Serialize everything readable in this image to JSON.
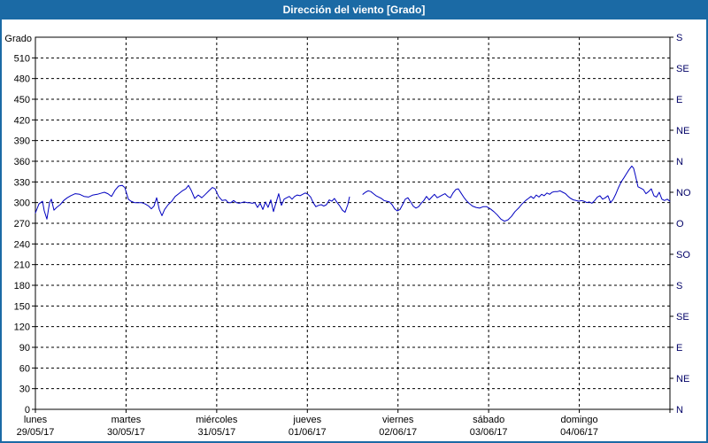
{
  "window": {
    "title": "Dirección del viento [Grado]"
  },
  "colors": {
    "titlebar_bg": "#1b6aa5",
    "window_border": "#1b6aa5",
    "plot_bg": "#ffffff",
    "plot_border": "#000000",
    "grid": "#000000",
    "line": "#0000c0",
    "left_label": "#000000",
    "right_label": "#000066",
    "x_label": "#000000"
  },
  "y_axis": {
    "title": "Grado",
    "ticks": [
      0,
      30,
      60,
      90,
      120,
      150,
      180,
      210,
      240,
      270,
      300,
      330,
      360,
      390,
      420,
      450,
      480,
      510
    ],
    "min": 0,
    "max": 540
  },
  "right_axis": {
    "labels": [
      {
        "deg": 0,
        "label": "N"
      },
      {
        "deg": 45,
        "label": "NE"
      },
      {
        "deg": 90,
        "label": "E"
      },
      {
        "deg": 135,
        "label": "SE"
      },
      {
        "deg": 180,
        "label": "S"
      },
      {
        "deg": 225,
        "label": "SO"
      },
      {
        "deg": 270,
        "label": "O"
      },
      {
        "deg": 315,
        "label": "NO"
      },
      {
        "deg": 360,
        "label": "N"
      },
      {
        "deg": 405,
        "label": "NE"
      },
      {
        "deg": 450,
        "label": "E"
      },
      {
        "deg": 495,
        "label": "SE"
      },
      {
        "deg": 540,
        "label": "S"
      }
    ]
  },
  "x_axis": {
    "days": [
      {
        "name": "lunes",
        "date": "29/05/17"
      },
      {
        "name": "martes",
        "date": "30/05/17"
      },
      {
        "name": "miércoles",
        "date": "31/05/17"
      },
      {
        "name": "jueves",
        "date": "01/06/17"
      },
      {
        "name": "viernes",
        "date": "02/06/17"
      },
      {
        "name": "sábado",
        "date": "03/06/17"
      },
      {
        "name": "domingo",
        "date": "04/06/17"
      }
    ]
  },
  "chart_data": {
    "type": "line",
    "title": "Dirección del viento [Grado]",
    "xlabel": "",
    "ylabel": "Grado",
    "x_unit": "days since lunes 29/05/17 00:00",
    "xlim": [
      0,
      7
    ],
    "ylim": [
      0,
      540
    ],
    "grid": true,
    "legend": false,
    "gap_note": "data gap during jueves 01/06/17 (~0.45–0.61 of the day)",
    "series": [
      {
        "name": "Dirección del viento",
        "color": "#0000c0",
        "segments": [
          [
            [
              0.0,
              285
            ],
            [
              0.039,
              298
            ],
            [
              0.078,
              302
            ],
            [
              0.098,
              288
            ],
            [
              0.127,
              276
            ],
            [
              0.156,
              300
            ],
            [
              0.176,
              305
            ],
            [
              0.205,
              289
            ],
            [
              0.234,
              293
            ],
            [
              0.273,
              297
            ],
            [
              0.312,
              303
            ],
            [
              0.351,
              307
            ],
            [
              0.39,
              310
            ],
            [
              0.439,
              313
            ],
            [
              0.488,
              312
            ],
            [
              0.537,
              309
            ],
            [
              0.586,
              308
            ],
            [
              0.635,
              311
            ],
            [
              0.683,
              312
            ],
            [
              0.732,
              314
            ],
            [
              0.761,
              315
            ],
            [
              0.8,
              313
            ],
            [
              0.84,
              309
            ],
            [
              0.879,
              318
            ],
            [
              0.918,
              324
            ],
            [
              0.957,
              325
            ],
            [
              0.986,
              322
            ],
            [
              1.025,
              305
            ],
            [
              1.054,
              302
            ],
            [
              1.093,
              300
            ],
            [
              1.133,
              300
            ],
            [
              1.172,
              300
            ],
            [
              1.211,
              298
            ],
            [
              1.25,
              295
            ],
            [
              1.279,
              291
            ],
            [
              1.308,
              295
            ],
            [
              1.338,
              307
            ],
            [
              1.367,
              290
            ],
            [
              1.396,
              281
            ],
            [
              1.425,
              290
            ],
            [
              1.464,
              297
            ],
            [
              1.504,
              302
            ],
            [
              1.543,
              309
            ],
            [
              1.582,
              313
            ],
            [
              1.621,
              317
            ],
            [
              1.66,
              320
            ],
            [
              1.689,
              325
            ],
            [
              1.718,
              318
            ],
            [
              1.757,
              306
            ],
            [
              1.796,
              311
            ],
            [
              1.835,
              307
            ],
            [
              1.875,
              312
            ],
            [
              1.914,
              317
            ],
            [
              1.953,
              322
            ],
            [
              1.982,
              320
            ],
            [
              2.021,
              309
            ],
            [
              2.06,
              303
            ],
            [
              2.099,
              304
            ],
            [
              2.128,
              300
            ],
            [
              2.158,
              300
            ],
            [
              2.187,
              303
            ],
            [
              2.216,
              300
            ],
            [
              2.245,
              299
            ],
            [
              2.275,
              300
            ],
            [
              2.304,
              301
            ],
            [
              2.333,
              300
            ],
            [
              2.362,
              300
            ],
            [
              2.392,
              299
            ],
            [
              2.421,
              300
            ],
            [
              2.45,
              293
            ],
            [
              2.48,
              299
            ],
            [
              2.509,
              290
            ],
            [
              2.538,
              301
            ],
            [
              2.567,
              293
            ],
            [
              2.597,
              304
            ],
            [
              2.626,
              287
            ],
            [
              2.655,
              300
            ],
            [
              2.684,
              313
            ],
            [
              2.714,
              296
            ],
            [
              2.743,
              305
            ],
            [
              2.772,
              307
            ],
            [
              2.801,
              309
            ],
            [
              2.831,
              305
            ],
            [
              2.86,
              309
            ],
            [
              2.889,
              311
            ],
            [
              2.919,
              310
            ],
            [
              2.948,
              312
            ],
            [
              2.977,
              314
            ],
            [
              3.007,
              312
            ],
            [
              3.036,
              308
            ],
            [
              3.065,
              300
            ],
            [
              3.094,
              294
            ],
            [
              3.124,
              296
            ],
            [
              3.153,
              297
            ],
            [
              3.182,
              295
            ],
            [
              3.211,
              297
            ],
            [
              3.241,
              304
            ],
            [
              3.27,
              302
            ],
            [
              3.299,
              306
            ],
            [
              3.329,
              300
            ],
            [
              3.358,
              295
            ],
            [
              3.387,
              289
            ],
            [
              3.416,
              286
            ],
            [
              3.446,
              297
            ],
            [
              3.465,
              308
            ]
          ],
          [
            [
              3.612,
              312
            ],
            [
              3.641,
              315
            ],
            [
              3.67,
              317
            ],
            [
              3.7,
              316
            ],
            [
              3.729,
              313
            ],
            [
              3.758,
              310
            ],
            [
              3.787,
              308
            ],
            [
              3.817,
              306
            ],
            [
              3.846,
              303
            ],
            [
              3.875,
              302
            ],
            [
              3.905,
              301
            ],
            [
              3.934,
              297
            ],
            [
              3.963,
              291
            ],
            [
              3.992,
              288
            ],
            [
              4.022,
              290
            ],
            [
              4.051,
              297
            ],
            [
              4.08,
              305
            ],
            [
              4.109,
              307
            ],
            [
              4.139,
              301
            ],
            [
              4.168,
              295
            ],
            [
              4.197,
              292
            ],
            [
              4.227,
              294
            ],
            [
              4.256,
              299
            ],
            [
              4.285,
              303
            ],
            [
              4.314,
              309
            ],
            [
              4.344,
              304
            ],
            [
              4.373,
              308
            ],
            [
              4.402,
              312
            ],
            [
              4.432,
              307
            ],
            [
              4.461,
              309
            ],
            [
              4.49,
              311
            ],
            [
              4.519,
              313
            ],
            [
              4.549,
              309
            ],
            [
              4.578,
              307
            ],
            [
              4.607,
              314
            ],
            [
              4.637,
              319
            ],
            [
              4.666,
              320
            ],
            [
              4.695,
              314
            ],
            [
              4.724,
              308
            ],
            [
              4.754,
              303
            ],
            [
              4.783,
              299
            ],
            [
              4.822,
              295
            ],
            [
              4.861,
              293
            ],
            [
              4.9,
              292
            ],
            [
              4.939,
              294
            ],
            [
              4.978,
              294
            ],
            [
              5.018,
              291
            ],
            [
              5.057,
              287
            ],
            [
              5.096,
              282
            ],
            [
              5.135,
              276
            ],
            [
              5.174,
              273
            ],
            [
              5.213,
              275
            ],
            [
              5.252,
              280
            ],
            [
              5.291,
              287
            ],
            [
              5.33,
              292
            ],
            [
              5.369,
              298
            ],
            [
              5.409,
              303
            ],
            [
              5.438,
              306
            ],
            [
              5.467,
              309
            ],
            [
              5.496,
              306
            ],
            [
              5.526,
              311
            ],
            [
              5.555,
              308
            ],
            [
              5.584,
              312
            ],
            [
              5.613,
              310
            ],
            [
              5.643,
              314
            ],
            [
              5.672,
              312
            ],
            [
              5.701,
              315
            ],
            [
              5.731,
              316
            ],
            [
              5.76,
              316
            ],
            [
              5.789,
              317
            ],
            [
              5.818,
              315
            ],
            [
              5.848,
              313
            ],
            [
              5.877,
              309
            ],
            [
              5.906,
              306
            ],
            [
              5.935,
              304
            ],
            [
              5.965,
              303
            ],
            [
              5.994,
              302
            ],
            [
              6.023,
              303
            ],
            [
              6.053,
              302
            ],
            [
              6.082,
              300
            ],
            [
              6.111,
              301
            ],
            [
              6.14,
              299
            ],
            [
              6.17,
              303
            ],
            [
              6.199,
              308
            ],
            [
              6.228,
              310
            ],
            [
              6.257,
              305
            ],
            [
              6.287,
              307
            ],
            [
              6.316,
              310
            ],
            [
              6.345,
              300
            ],
            [
              6.375,
              305
            ],
            [
              6.404,
              313
            ],
            [
              6.433,
              322
            ],
            [
              6.462,
              330
            ],
            [
              6.492,
              336
            ],
            [
              6.521,
              342
            ],
            [
              6.55,
              348
            ],
            [
              6.579,
              353
            ],
            [
              6.599,
              350
            ],
            [
              6.618,
              340
            ],
            [
              6.648,
              323
            ],
            [
              6.677,
              321
            ],
            [
              6.706,
              319
            ],
            [
              6.735,
              313
            ],
            [
              6.765,
              316
            ],
            [
              6.794,
              320
            ],
            [
              6.823,
              310
            ],
            [
              6.852,
              308
            ],
            [
              6.882,
              315
            ],
            [
              6.911,
              305
            ],
            [
              6.94,
              303
            ],
            [
              6.97,
              305
            ],
            [
              6.999,
              302
            ]
          ]
        ]
      }
    ]
  }
}
